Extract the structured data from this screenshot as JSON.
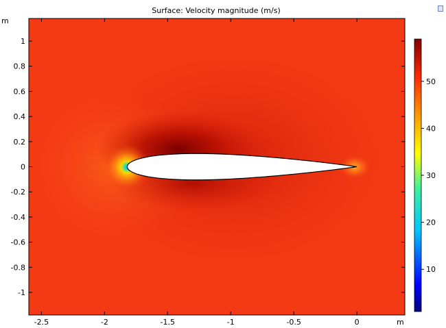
{
  "chart_data": {
    "type": "heatmap",
    "title": "Surface: Velocity magnitude (m/s)",
    "xlabel": "m",
    "ylabel": "m",
    "xlim": [
      -2.6,
      0.38
    ],
    "ylim": [
      -1.18,
      1.18
    ],
    "x_ticks": [
      -2.5,
      -2,
      -1.5,
      -1,
      -0.5,
      0
    ],
    "x_tick_labels": [
      "-2.5",
      "-2",
      "-1.5",
      "-1",
      "-0.5",
      "0"
    ],
    "y_ticks": [
      1,
      0.8,
      0.6,
      0.4,
      0.2,
      0,
      -0.2,
      -0.4,
      -0.6,
      -0.8,
      -1
    ],
    "y_tick_labels": [
      "1",
      "0.8",
      "0.6",
      "0.4",
      "0.2",
      "0",
      "-0.2",
      "-0.4",
      "-0.6",
      "-0.8",
      "-1"
    ],
    "colorbar": {
      "range": [
        1,
        59
      ],
      "ticks": [
        10,
        20,
        30,
        40,
        50
      ],
      "tick_labels": [
        "10",
        "20",
        "30",
        "40",
        "50"
      ],
      "colormap": "rainbow"
    },
    "freestream_value": 52,
    "airfoil": {
      "leading_edge": [
        -1.82,
        0
      ],
      "trailing_edge": [
        0,
        0
      ],
      "max_thickness": 0.21
    },
    "background_color": "#f33a14",
    "airfoil_fill": "#ffffff"
  }
}
